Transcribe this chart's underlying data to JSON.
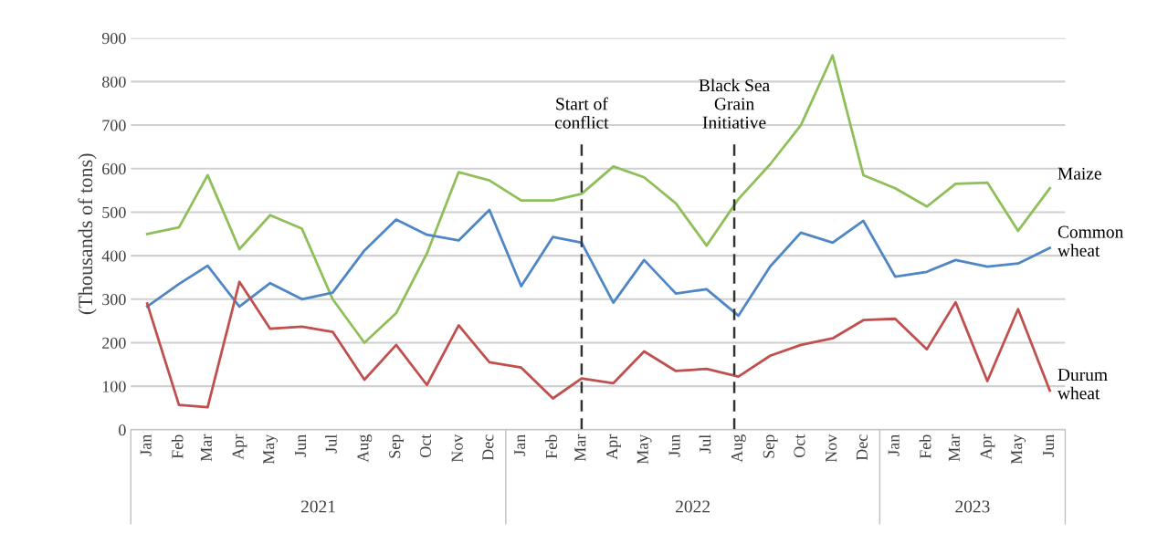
{
  "chart_data": {
    "type": "line",
    "ylabel": "(Thousands of tons)",
    "x": [
      "2021-01",
      "2021-02",
      "2021-03",
      "2021-04",
      "2021-05",
      "2021-06",
      "2021-07",
      "2021-08",
      "2021-09",
      "2021-10",
      "2021-11",
      "2021-12",
      "2022-01",
      "2022-02",
      "2022-03",
      "2022-04",
      "2022-05",
      "2022-06",
      "2022-07",
      "2022-08",
      "2022-09",
      "2022-10",
      "2022-11",
      "2022-12",
      "2023-01",
      "2023-02",
      "2023-03",
      "2023-04",
      "2023-05",
      "2023-06"
    ],
    "series": [
      {
        "name": "Maize",
        "color": "#8fbf5a",
        "values": [
          450,
          465,
          585,
          415,
          493,
          462,
          300,
          200,
          268,
          405,
          592,
          573,
          527,
          527,
          542,
          605,
          580,
          520,
          423,
          530,
          610,
          700,
          860,
          585,
          555,
          513,
          565,
          568,
          457,
          555
        ]
      },
      {
        "name": "Common wheat",
        "color": "#4f86c6",
        "values": [
          283,
          335,
          377,
          283,
          337,
          300,
          315,
          412,
          483,
          448,
          435,
          505,
          330,
          443,
          430,
          292,
          390,
          313,
          323,
          262,
          375,
          453,
          430,
          480,
          352,
          363,
          390,
          375,
          382,
          418
        ]
      },
      {
        "name": "Durum wheat",
        "color": "#c0504d",
        "values": [
          290,
          57,
          52,
          340,
          232,
          237,
          225,
          115,
          195,
          103,
          240,
          155,
          143,
          72,
          118,
          107,
          180,
          135,
          140,
          122,
          170,
          195,
          210,
          252,
          255,
          185,
          293,
          112,
          277,
          90
        ]
      }
    ],
    "xlim": [
      "2020-12-16",
      "2023-06-16"
    ],
    "xticks": [
      {
        "value": "2021-01",
        "label": "Jan"
      },
      {
        "value": "2021-02",
        "label": "Feb"
      },
      {
        "value": "2021-03",
        "label": "Mar"
      },
      {
        "value": "2021-04",
        "label": "Apr"
      },
      {
        "value": "2021-05",
        "label": "May"
      },
      {
        "value": "2021-06",
        "label": "Jun"
      },
      {
        "value": "2021-07",
        "label": "Jul"
      },
      {
        "value": "2021-08",
        "label": "Aug"
      },
      {
        "value": "2021-09",
        "label": "Sep"
      },
      {
        "value": "2021-10",
        "label": "Oct"
      },
      {
        "value": "2021-11",
        "label": "Nov"
      },
      {
        "value": "2021-12",
        "label": "Dec"
      },
      {
        "value": "2022-01",
        "label": "Jan"
      },
      {
        "value": "2022-02",
        "label": "Feb"
      },
      {
        "value": "2022-03",
        "label": "Mar"
      },
      {
        "value": "2022-04",
        "label": "Apr"
      },
      {
        "value": "2022-05",
        "label": "May"
      },
      {
        "value": "2022-06",
        "label": "Jun"
      },
      {
        "value": "2022-07",
        "label": "Jul"
      },
      {
        "value": "2022-08",
        "label": "Aug"
      },
      {
        "value": "2022-09",
        "label": "Sep"
      },
      {
        "value": "2022-10",
        "label": "Oct"
      },
      {
        "value": "2022-11",
        "label": "Nov"
      },
      {
        "value": "2022-12",
        "label": "Dec"
      },
      {
        "value": "2023-01",
        "label": "Jan"
      },
      {
        "value": "2023-02",
        "label": "Feb"
      },
      {
        "value": "2023-03",
        "label": "Mar"
      },
      {
        "value": "2023-04",
        "label": "Apr"
      },
      {
        "value": "2023-05",
        "label": "May"
      },
      {
        "value": "2023-06",
        "label": "Jun"
      }
    ],
    "ylim": [
      0,
      900
    ],
    "yticks": [
      0,
      100,
      200,
      300,
      400,
      500,
      600,
      700,
      800,
      900
    ],
    "grid": "y",
    "legend": false,
    "marker": "none",
    "line_style": "solid",
    "ref_lines": [
      {
        "axis": "x",
        "value": "2022-03",
        "label": "Start of\nconflict",
        "color": "#333333",
        "line_style": "dashed"
      },
      {
        "axis": "x",
        "value": "2022-07-28",
        "label": "Black Sea\nGrain\nInitiative",
        "color": "#333333",
        "line_style": "dashed"
      }
    ],
    "annotations": [
      "2021",
      "2022",
      "2023"
    ]
  }
}
